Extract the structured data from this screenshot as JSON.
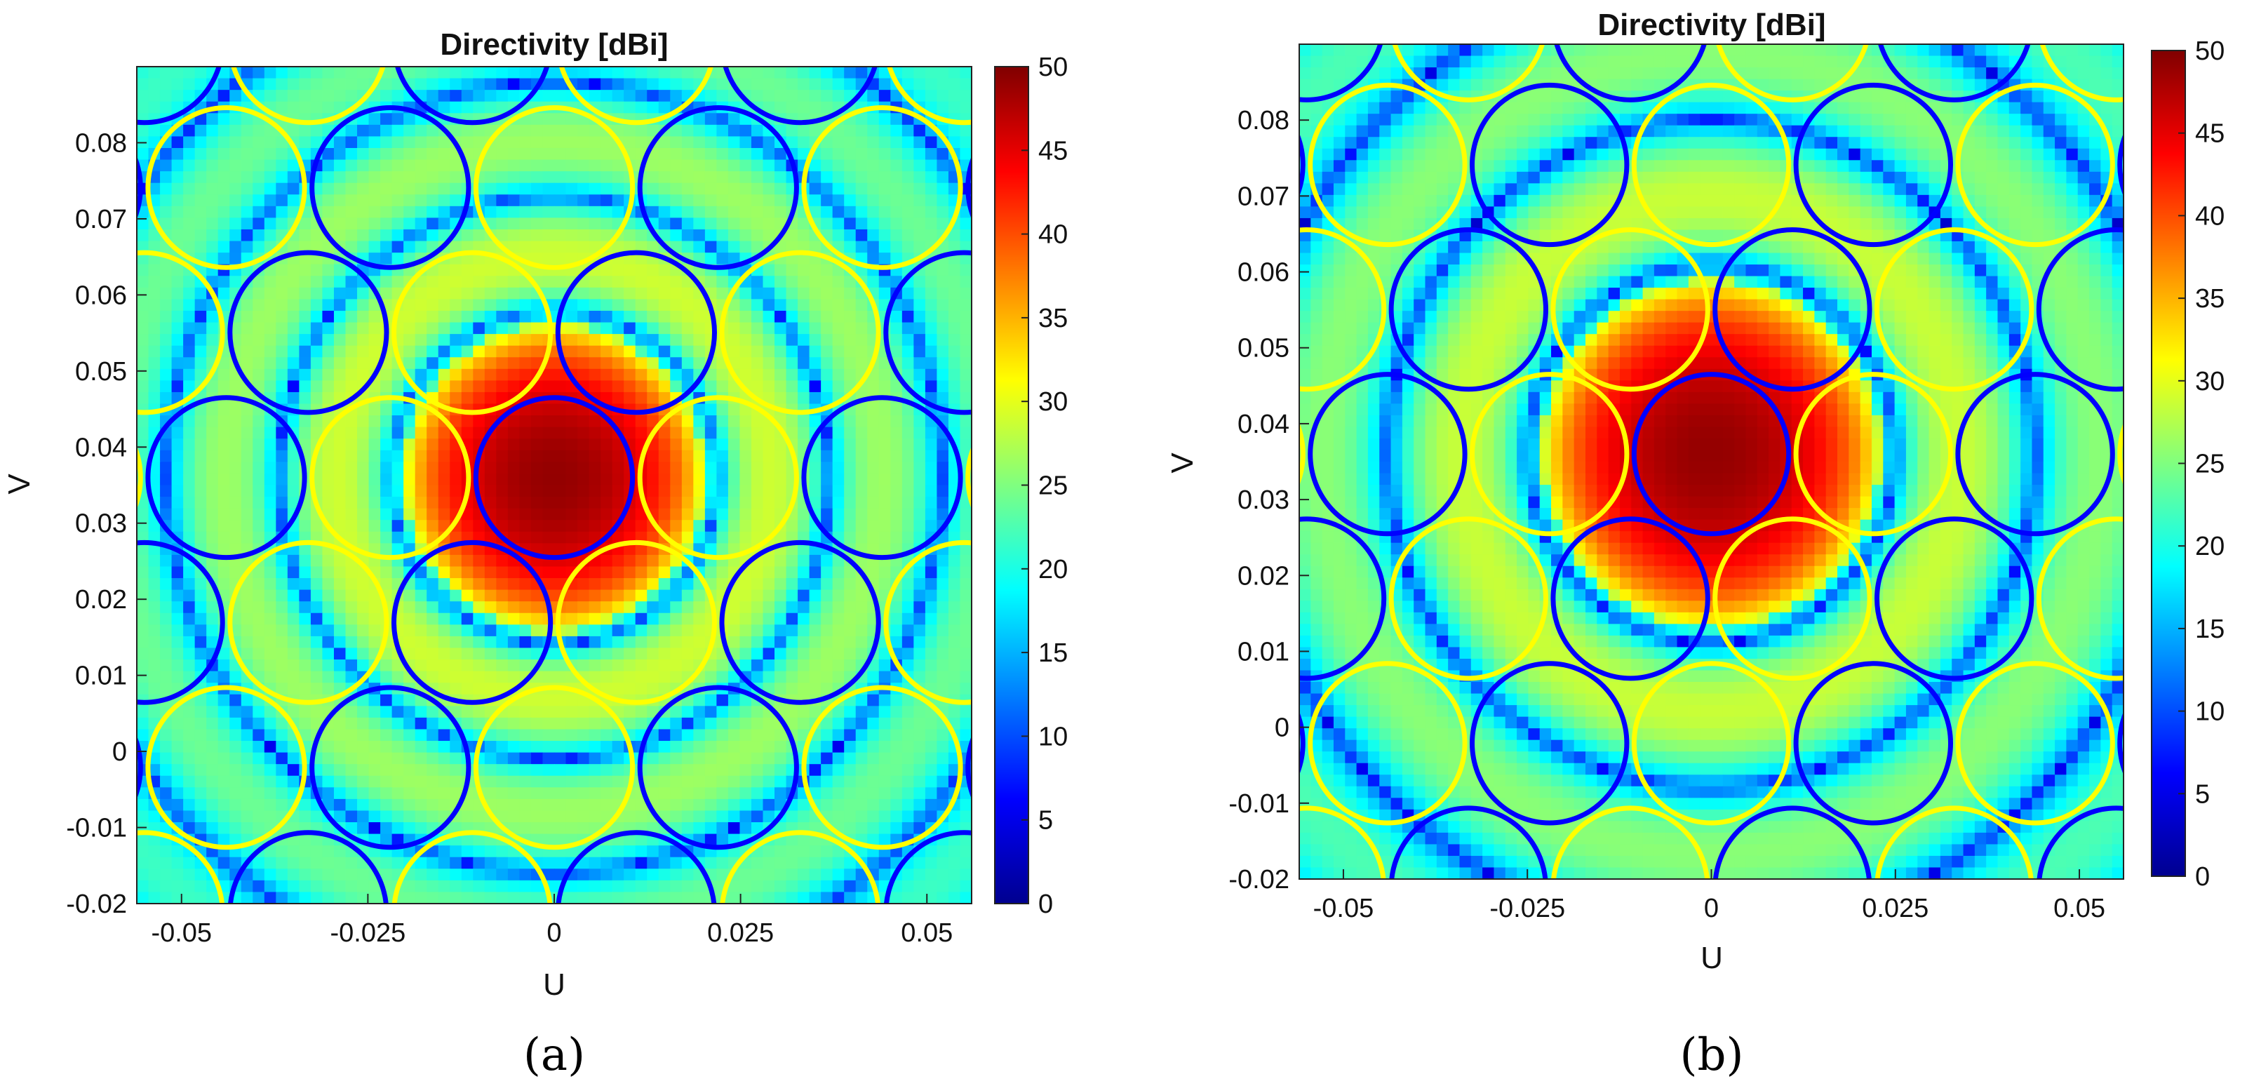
{
  "chart_data": [
    {
      "type": "heatmap",
      "panel_label": "(a)",
      "title": "Directivity [dBi]",
      "xlabel": "U",
      "ylabel": "V",
      "xlim": [
        -0.056,
        0.056
      ],
      "ylim": [
        -0.02,
        0.09
      ],
      "x_ticks": [
        -0.05,
        -0.025,
        0,
        0.025,
        0.05
      ],
      "x_tick_labels": [
        "-0.05",
        "-0.025",
        "0",
        "0.025",
        "0.05"
      ],
      "y_ticks": [
        -0.02,
        -0.01,
        0,
        0.01,
        0.02,
        0.03,
        0.04,
        0.05,
        0.06,
        0.07,
        0.08
      ],
      "y_tick_labels": [
        "-0.02",
        "-0.01",
        "0",
        "0.01",
        "0.02",
        "0.03",
        "0.04",
        "0.05",
        "0.06",
        "0.07",
        "0.08"
      ],
      "colorbar": {
        "range": [
          0,
          50
        ],
        "ticks": [
          0,
          5,
          10,
          15,
          20,
          25,
          30,
          35,
          40,
          45,
          50
        ],
        "tick_labels": [
          "0",
          "5",
          "10",
          "15",
          "20",
          "25",
          "30",
          "35",
          "40",
          "45",
          "50"
        ],
        "colormap": "jet"
      },
      "beam_center": [
        0,
        0.036
      ],
      "peak_dBi": 49,
      "pattern": "sinc",
      "mainlobe_null_radius": 0.022,
      "sidelobe_period": 0.015,
      "floor_dBi": 14,
      "cell_spacing": 0.022,
      "cell_radius": 0.0105,
      "cell_colors": [
        "#0000ff",
        "#ff0000",
        "#ffff00",
        "#00dd00"
      ],
      "grid": false
    },
    {
      "type": "heatmap",
      "panel_label": "(b)",
      "title": "Directivity [dBi]",
      "xlabel": "U",
      "ylabel": "V",
      "xlim": [
        -0.056,
        0.056
      ],
      "ylim": [
        -0.02,
        0.09
      ],
      "x_ticks": [
        -0.05,
        -0.025,
        0,
        0.025,
        0.05
      ],
      "x_tick_labels": [
        "-0.05",
        "-0.025",
        "0",
        "0.025",
        "0.05"
      ],
      "y_ticks": [
        -0.02,
        -0.01,
        0,
        0.01,
        0.02,
        0.03,
        0.04,
        0.05,
        0.06,
        0.07,
        0.08
      ],
      "y_tick_labels": [
        "-0.02",
        "-0.01",
        "0",
        "0.01",
        "0.02",
        "0.03",
        "0.04",
        "0.05",
        "0.06",
        "0.07",
        "0.08"
      ],
      "colorbar": {
        "range": [
          0,
          50
        ],
        "ticks": [
          0,
          5,
          10,
          15,
          20,
          25,
          30,
          35,
          40,
          45,
          50
        ],
        "tick_labels": [
          "0",
          "5",
          "10",
          "15",
          "20",
          "25",
          "30",
          "35",
          "40",
          "45",
          "50"
        ],
        "colormap": "jet"
      },
      "beam_center": [
        0,
        0.036
      ],
      "peak_dBi": 49,
      "pattern": "sinc",
      "mainlobe_null_radius": 0.025,
      "sidelobe_period": 0.019,
      "floor_dBi": 8,
      "cell_spacing": 0.022,
      "cell_radius": 0.0105,
      "cell_colors": [
        "#0000ff",
        "#ff0000",
        "#ffff00",
        "#00dd00"
      ],
      "grid": false
    }
  ]
}
